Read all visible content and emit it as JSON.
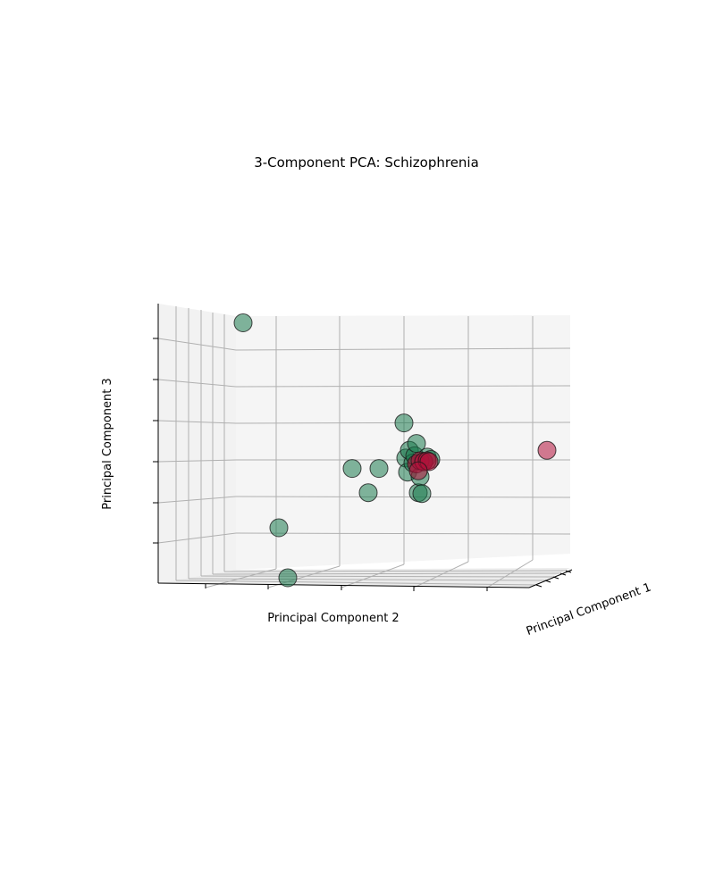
{
  "chart_data": {
    "type": "scatter",
    "projection": "3d",
    "title": "3-Component PCA: Schizophrenia",
    "xlabel": "Principal Component 1",
    "ylabel": "Principal Component 2",
    "zlabel": "Principal Component 3",
    "grid": true,
    "tick_labels_shown": false,
    "colors": {
      "green": "#1b7a4f",
      "red": "#b3103a",
      "pane": "#f5f5f5",
      "grid": "#b0b0b0",
      "edge": "#1a1a1a"
    },
    "points": [
      {
        "pc2": -0.93,
        "pc3": 3.05,
        "color": "green"
      },
      {
        "pc2": -0.73,
        "pc3": -1.45,
        "color": "green"
      },
      {
        "pc2": -0.68,
        "pc3": -2.55,
        "color": "green"
      },
      {
        "pc2": -0.32,
        "pc3": -0.15,
        "color": "green"
      },
      {
        "pc2": -0.23,
        "pc3": -0.68,
        "color": "green"
      },
      {
        "pc2": -0.17,
        "pc3": -0.15,
        "color": "green"
      },
      {
        "pc2": -0.03,
        "pc3": 0.85,
        "color": "green"
      },
      {
        "pc2": -0.02,
        "pc3": 0.08,
        "color": "green"
      },
      {
        "pc2": -0.01,
        "pc3": -0.23,
        "color": "green"
      },
      {
        "pc2": 0.0,
        "pc3": 0.25,
        "color": "green"
      },
      {
        "pc2": 0.02,
        "pc3": -0.03,
        "color": "green"
      },
      {
        "pc2": 0.03,
        "pc3": 0.13,
        "color": "green"
      },
      {
        "pc2": 0.04,
        "pc3": 0.4,
        "color": "green"
      },
      {
        "pc2": 0.05,
        "pc3": -0.68,
        "color": "green"
      },
      {
        "pc2": 0.06,
        "pc3": -0.33,
        "color": "green"
      },
      {
        "pc2": 0.07,
        "pc3": -0.7,
        "color": "green"
      },
      {
        "pc2": 0.08,
        "pc3": 0.0,
        "color": "green"
      },
      {
        "pc2": 0.1,
        "pc3": 0.1,
        "color": "green"
      },
      {
        "pc2": 0.12,
        "pc3": 0.05,
        "color": "green"
      },
      {
        "pc2": 0.04,
        "pc3": -0.05,
        "color": "red"
      },
      {
        "pc2": 0.06,
        "pc3": 0.02,
        "color": "red"
      },
      {
        "pc2": 0.08,
        "pc3": 0.0,
        "color": "red"
      },
      {
        "pc2": 0.1,
        "pc3": 0.02,
        "color": "red"
      },
      {
        "pc2": 0.11,
        "pc3": 0.0,
        "color": "red"
      },
      {
        "pc2": 0.05,
        "pc3": -0.2,
        "color": "red"
      },
      {
        "pc2": 0.77,
        "pc3": 0.25,
        "color": "red"
      }
    ]
  }
}
